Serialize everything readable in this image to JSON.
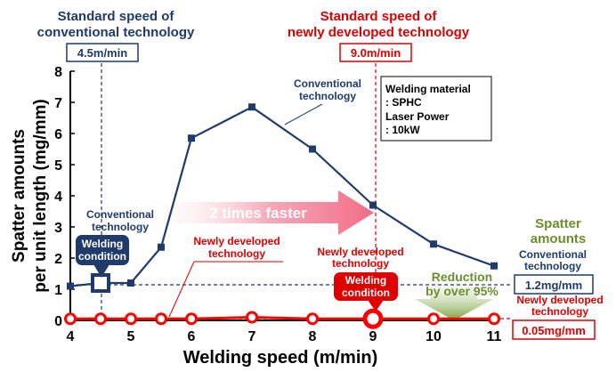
{
  "chart_data": {
    "type": "line",
    "title": "",
    "xlabel": "Welding speed (m/min)",
    "ylabel": [
      "Spatter amounts",
      "per unit length (mg/mm)"
    ],
    "xlim": [
      4,
      11
    ],
    "ylim": [
      0,
      8
    ],
    "xticks": [
      4,
      5,
      6,
      7,
      8,
      9,
      10,
      11
    ],
    "yticks": [
      0,
      1,
      2,
      3,
      4,
      5,
      6,
      7,
      8
    ],
    "grid": false,
    "series": [
      {
        "name": "Conventional technology",
        "color": "#1f3a6b",
        "marker": "square",
        "x": [
          4,
          4.5,
          5,
          5.5,
          6,
          7,
          8,
          9,
          10,
          11
        ],
        "y": [
          1.1,
          1.2,
          1.2,
          2.35,
          5.85,
          6.85,
          5.5,
          3.7,
          2.45,
          1.75
        ]
      },
      {
        "name": "Newly developed technology",
        "color": "#ff0000",
        "marker": "circle",
        "x": [
          4,
          4.5,
          5,
          5.5,
          6,
          7,
          8,
          9,
          10,
          11
        ],
        "y": [
          0.05,
          0.05,
          0.05,
          0.05,
          0.05,
          0.1,
          0.05,
          0.05,
          0.05,
          0.05
        ]
      }
    ],
    "annotations": {
      "std_conv_title": [
        "Standard speed of",
        "conventional technology"
      ],
      "std_conv_value": "4.5m/min",
      "std_new_title": [
        "Standard speed of",
        "newly developed technology"
      ],
      "std_new_value": "9.0m/min",
      "material_box": [
        "Welding material",
        ": SPHC",
        "Laser Power",
        ": 10kW"
      ],
      "conv_curve_label": [
        "Conventional",
        "technology"
      ],
      "conv_condition_label": [
        "Conventional",
        "technology"
      ],
      "welding_condition": [
        "Welding",
        "condition"
      ],
      "faster_arrow": "2 times faster",
      "new_curve_label": [
        "Newly developed",
        "technology"
      ],
      "new_condition_label": [
        "Newly developed",
        "technology"
      ],
      "reduction": [
        "Reduction",
        "by over 95%"
      ],
      "spatter_header": [
        "Spatter",
        "amounts"
      ],
      "right_conv_label": [
        "Conventional",
        "technology"
      ],
      "right_conv_value": "1.2mg/mm",
      "right_new_label": [
        "Newly developed",
        "technology"
      ],
      "right_new_value": "0.05mg/mm"
    }
  }
}
